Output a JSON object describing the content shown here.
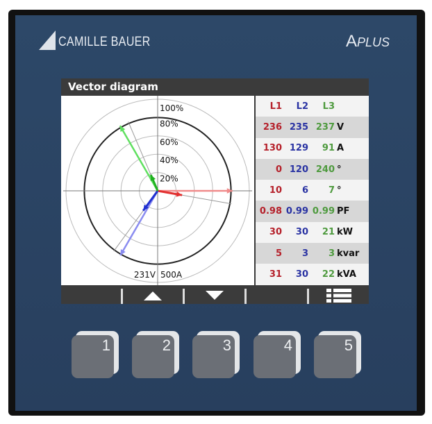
{
  "brand": {
    "logo_text": "CAMILLE BAUER",
    "model_a": "A",
    "model_plus": "PLUS"
  },
  "screen": {
    "title": "Vector diagram",
    "diagram": {
      "ring_labels": [
        "100%",
        "80%",
        "60%",
        "40%",
        "20%"
      ],
      "voltage_scale": "231V",
      "current_scale": "500A",
      "colors": {
        "L1": "#e23030",
        "L2": "#2030d0",
        "L3": "#20b020",
        "L1_light": "#f08a8a",
        "L2_light": "#8a8cf0",
        "L3_light": "#60e060"
      }
    },
    "table": {
      "header": [
        "L1",
        "L2",
        "L3"
      ],
      "rows": [
        {
          "values": [
            "236",
            "235",
            "237"
          ],
          "unit": "V"
        },
        {
          "values": [
            "130",
            "129",
            "91"
          ],
          "unit": "A"
        },
        {
          "values": [
            "0",
            "120",
            "240"
          ],
          "unit": "°"
        },
        {
          "values": [
            "10",
            "6",
            "7"
          ],
          "unit": "°"
        },
        {
          "values": [
            "0.98",
            "0.99",
            "0.99"
          ],
          "unit": "PF"
        },
        {
          "values": [
            "30",
            "30",
            "21"
          ],
          "unit": "kW"
        },
        {
          "values": [
            "5",
            "3",
            "3"
          ],
          "unit": "kvar"
        },
        {
          "values": [
            "31",
            "30",
            "22"
          ],
          "unit": "kVA"
        }
      ]
    },
    "softkeys": [
      "",
      "up-arrow-icon",
      "down-arrow-icon",
      "",
      "list-icon"
    ]
  },
  "keys": [
    "1",
    "2",
    "3",
    "4",
    "5"
  ]
}
